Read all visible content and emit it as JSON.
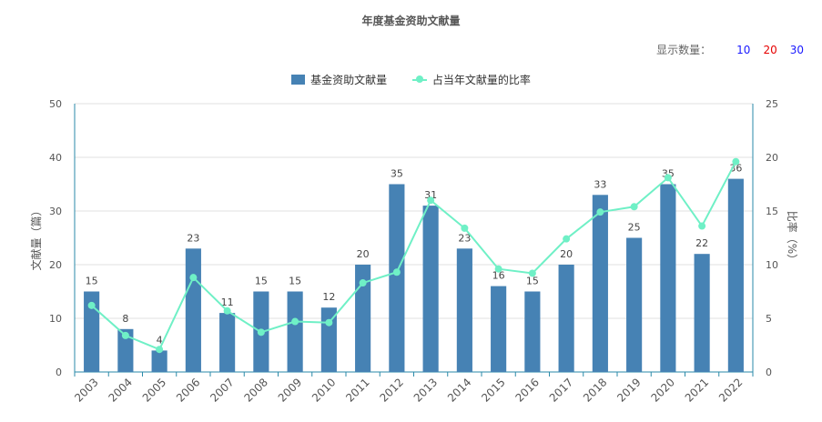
{
  "title": "年度基金资助文献量",
  "controls": {
    "label": "显示数量：",
    "options": [
      {
        "label": "10",
        "color": "#1a1aff"
      },
      {
        "label": "20",
        "color": "#e60000"
      },
      {
        "label": "30",
        "color": "#1a1aff"
      }
    ]
  },
  "colors": {
    "bar": "#4682b4",
    "line": "#6ff0c6",
    "axis": "#2a8aa8",
    "grid": "#e0e0e0"
  },
  "chart_data": {
    "type": "bar",
    "categories": [
      "2003",
      "2004",
      "2005",
      "2006",
      "2007",
      "2008",
      "2009",
      "2010",
      "2011",
      "2012",
      "2013",
      "2014",
      "2015",
      "2016",
      "2017",
      "2018",
      "2019",
      "2020",
      "2021",
      "2022"
    ],
    "series": [
      {
        "name": "基金资助文献量",
        "type": "bar",
        "axis": "left",
        "values": [
          15,
          8,
          4,
          23,
          11,
          15,
          15,
          12,
          20,
          35,
          31,
          23,
          16,
          15,
          20,
          33,
          25,
          35,
          22,
          36
        ]
      },
      {
        "name": "占当年文献量的比率",
        "type": "line",
        "axis": "right",
        "values": [
          6.2,
          3.4,
          2.1,
          8.8,
          5.7,
          3.7,
          4.7,
          4.6,
          8.3,
          9.3,
          16.0,
          13.4,
          9.6,
          9.2,
          12.4,
          14.9,
          15.4,
          18.1,
          13.6,
          19.6
        ]
      }
    ],
    "ylabel": "文献量（篇）",
    "y2label": "比率（%）",
    "ylim": [
      0,
      50
    ],
    "y2lim": [
      0,
      25
    ],
    "yticks": [
      "0",
      "10",
      "20",
      "30",
      "40",
      "50"
    ],
    "y2ticks": [
      "0",
      "5",
      "10",
      "15",
      "20",
      "25"
    ],
    "grid": true,
    "legend": "top"
  }
}
